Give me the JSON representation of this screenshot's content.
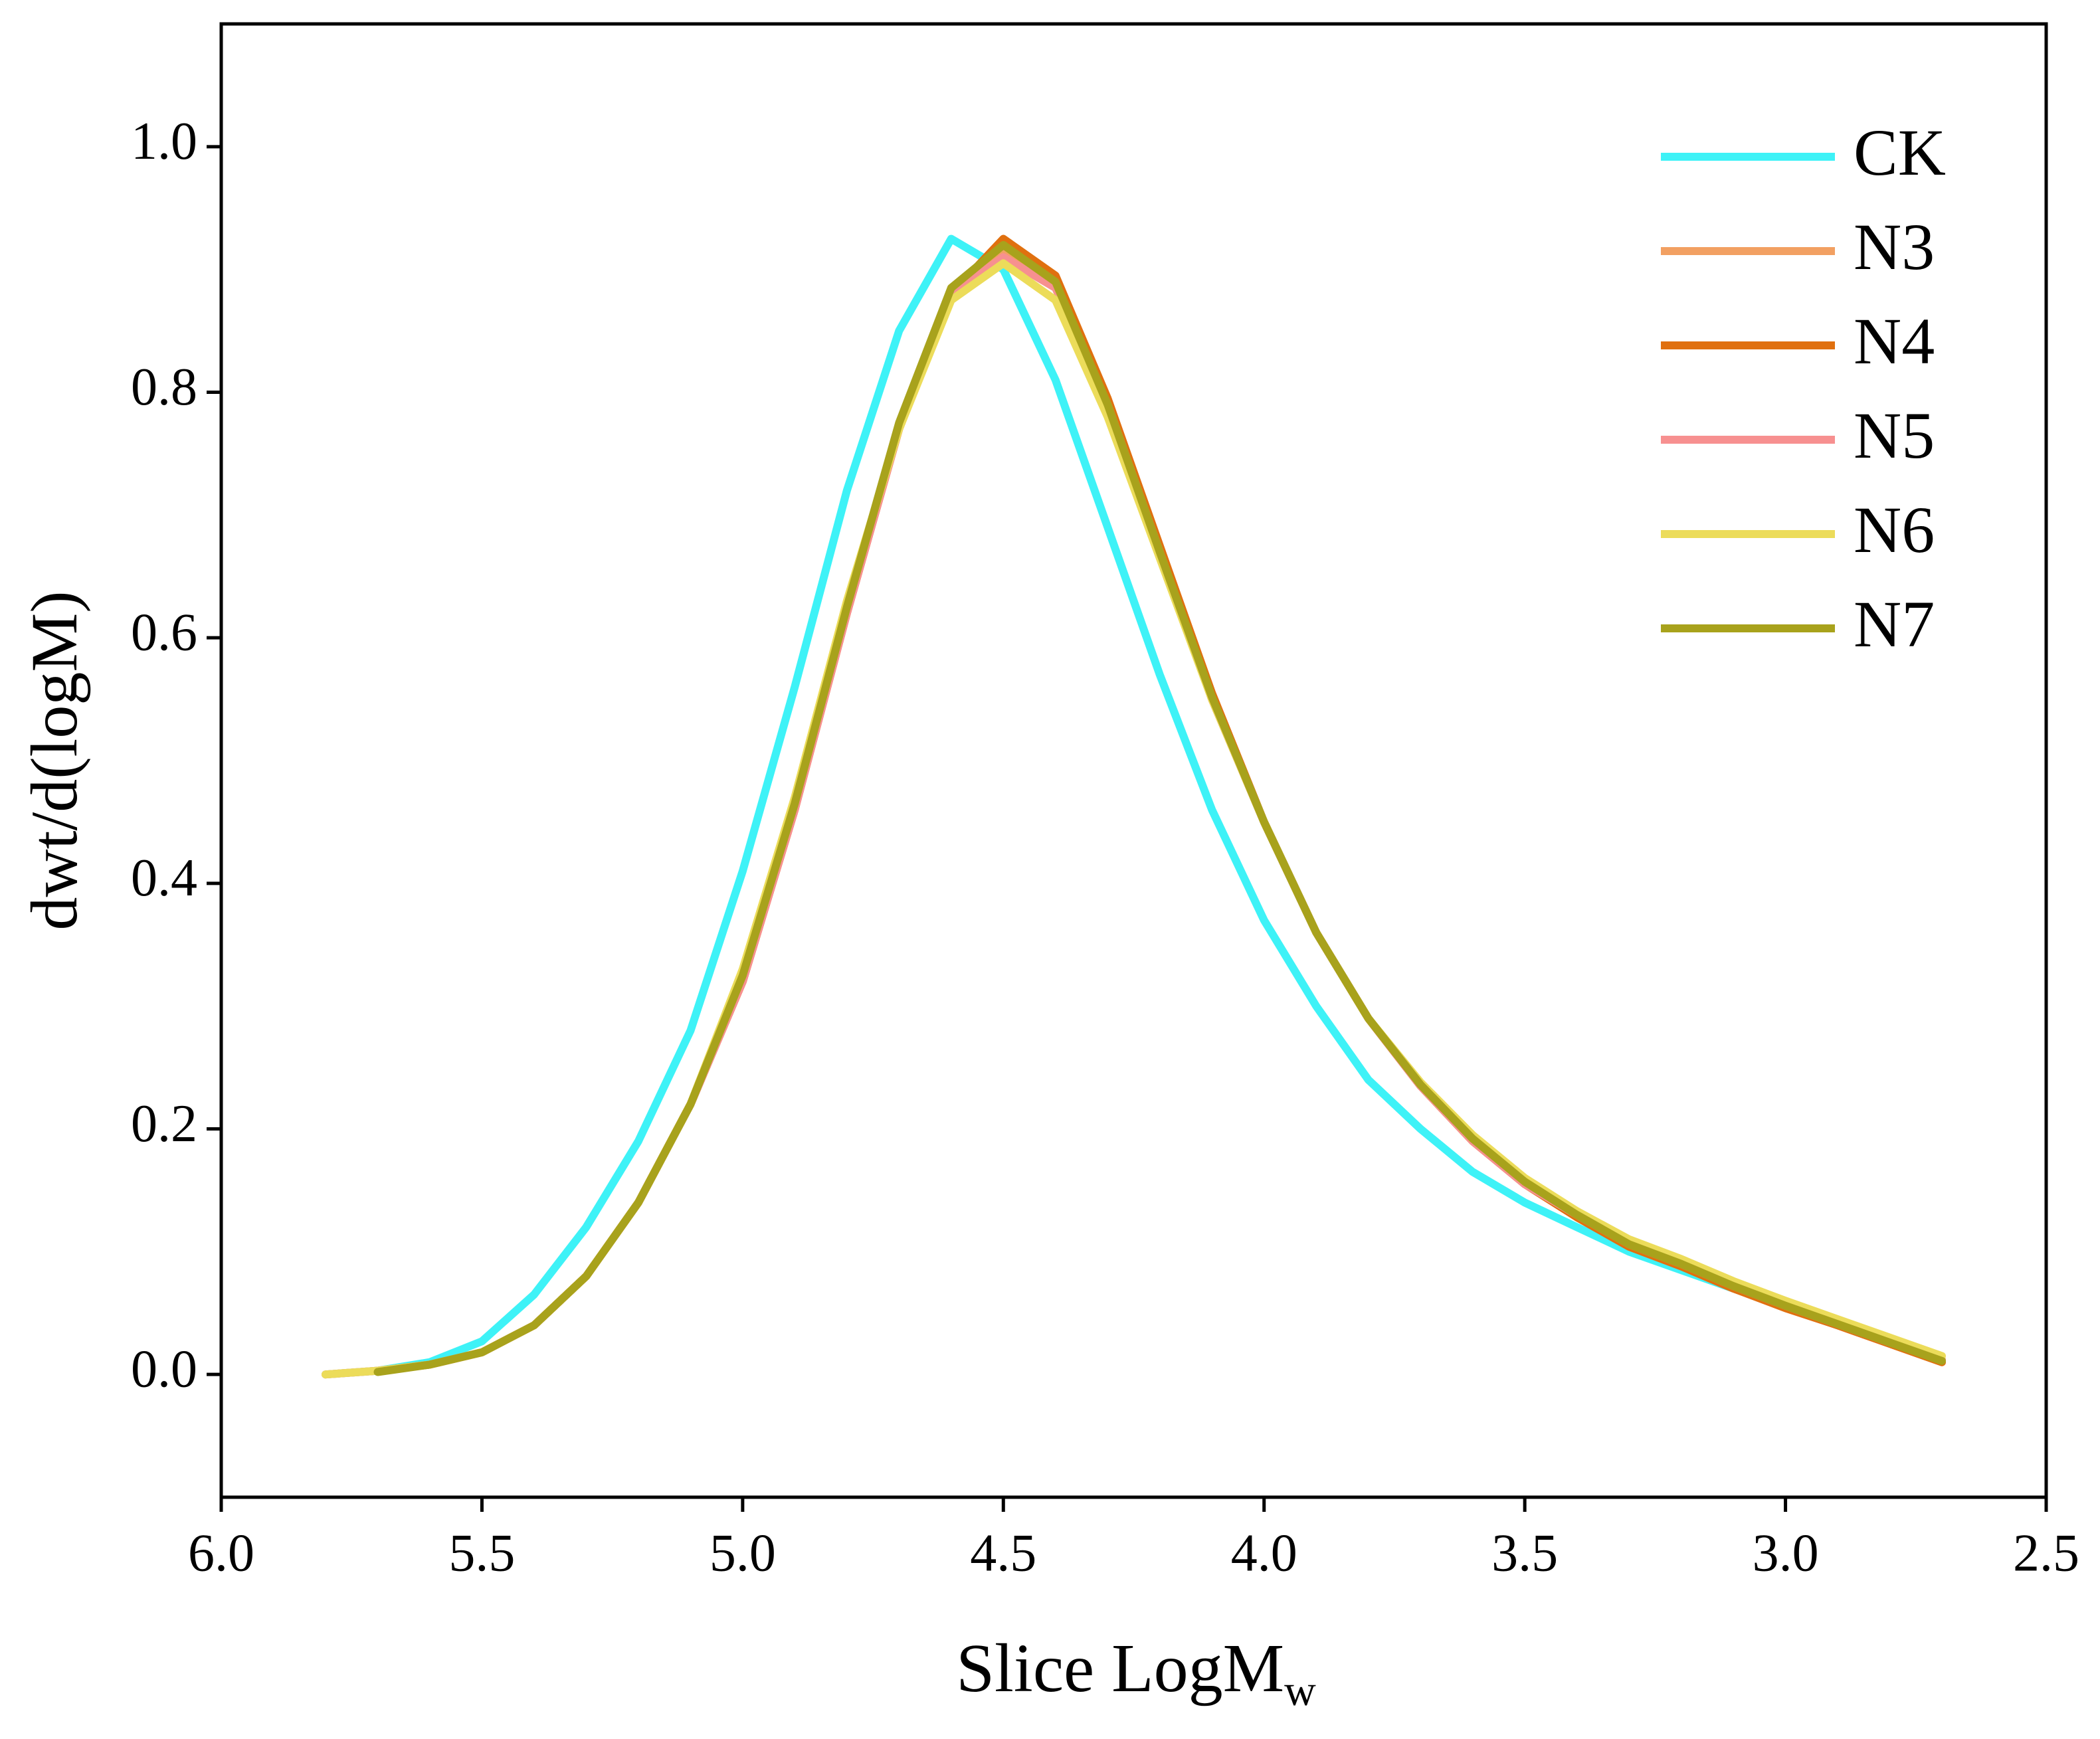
{
  "chart_data": {
    "type": "line",
    "x_label": "Slice LogM",
    "x_label_subscript": "w",
    "y_label": "dwt/d(logM)",
    "x": [
      5.8,
      5.7,
      5.6,
      5.5,
      5.4,
      5.3,
      5.2,
      5.1,
      5.0,
      4.9,
      4.8,
      4.7,
      4.6,
      4.5,
      4.4,
      4.3,
      4.2,
      4.1,
      4.0,
      3.9,
      3.8,
      3.7,
      3.6,
      3.5,
      3.4,
      3.3,
      3.2,
      3.1,
      3.0,
      2.9,
      2.8,
      2.7
    ],
    "series": [
      {
        "name": "CK",
        "color": "#3ef2f7",
        "values": [
          0.0,
          0.003,
          0.01,
          0.027,
          0.065,
          0.12,
          0.19,
          0.28,
          0.41,
          0.56,
          0.72,
          0.85,
          0.925,
          0.9,
          0.81,
          0.69,
          0.57,
          0.46,
          0.37,
          0.3,
          0.24,
          0.2,
          0.165,
          0.14,
          0.12,
          0.1,
          0.085,
          0.07,
          0.055,
          0.04,
          null,
          null
        ]
      },
      {
        "name": "N3",
        "color": "#f2a062",
        "values": [
          0.0,
          0.003,
          0.008,
          0.018,
          0.04,
          0.08,
          0.14,
          0.22,
          0.32,
          0.46,
          0.62,
          0.77,
          0.88,
          0.915,
          0.89,
          0.79,
          0.67,
          0.55,
          0.45,
          0.36,
          0.29,
          0.235,
          0.19,
          0.155,
          0.13,
          0.105,
          0.09,
          0.07,
          0.055,
          0.04,
          0.025,
          0.01
        ]
      },
      {
        "name": "N4",
        "color": "#e0700f",
        "values": [
          null,
          0.003,
          0.008,
          0.018,
          0.04,
          0.08,
          0.14,
          0.22,
          0.32,
          0.46,
          0.62,
          0.77,
          0.88,
          0.925,
          0.895,
          0.795,
          0.675,
          0.555,
          0.45,
          0.36,
          0.29,
          0.235,
          0.19,
          0.155,
          0.128,
          0.104,
          0.088,
          0.07,
          0.054,
          0.04,
          0.025,
          0.01
        ]
      },
      {
        "name": "N5",
        "color": "#f79090",
        "values": [
          0.0,
          0.003,
          0.008,
          0.018,
          0.04,
          0.08,
          0.14,
          0.22,
          0.32,
          0.46,
          0.62,
          0.77,
          0.88,
          0.91,
          0.885,
          0.79,
          0.67,
          0.55,
          0.45,
          0.36,
          0.29,
          0.235,
          0.19,
          0.155,
          0.13,
          0.106,
          0.09,
          0.072,
          0.056,
          0.041,
          0.026,
          0.012
        ]
      },
      {
        "name": "N6",
        "color": "#ecdc5a",
        "values": [
          0.0,
          0.003,
          0.008,
          0.018,
          0.04,
          0.08,
          0.14,
          0.22,
          0.33,
          0.47,
          0.63,
          0.77,
          0.875,
          0.905,
          0.875,
          0.78,
          0.665,
          0.55,
          0.45,
          0.36,
          0.29,
          0.238,
          0.195,
          0.16,
          0.133,
          0.11,
          0.094,
          0.076,
          0.06,
          0.045,
          0.03,
          0.015
        ]
      },
      {
        "name": "N7",
        "color": "#a8a21c",
        "values": [
          null,
          0.002,
          0.008,
          0.018,
          0.04,
          0.08,
          0.14,
          0.22,
          0.325,
          0.465,
          0.625,
          0.775,
          0.885,
          0.92,
          0.89,
          0.79,
          0.67,
          0.552,
          0.45,
          0.36,
          0.29,
          0.236,
          0.192,
          0.157,
          0.13,
          0.106,
          0.09,
          0.072,
          0.056,
          0.041,
          0.026,
          0.011
        ]
      }
    ],
    "xlim": [
      6.0,
      2.5
    ],
    "xticks": [
      {
        "value": 6,
        "label": "6.0"
      },
      5.5,
      {
        "value": 5,
        "label": "5.0"
      },
      4.5,
      {
        "value": 4,
        "label": "4.0"
      },
      3.5,
      {
        "value": 3,
        "label": "3.0"
      },
      2.5
    ],
    "ylim": [
      -0.1,
      1.1
    ],
    "yticks": [
      {
        "value": 0,
        "label": "0.0"
      },
      0.2,
      0.4,
      0.6,
      0.8,
      {
        "value": 1,
        "label": "1.0"
      }
    ],
    "grid": false,
    "legend": "upper right"
  }
}
